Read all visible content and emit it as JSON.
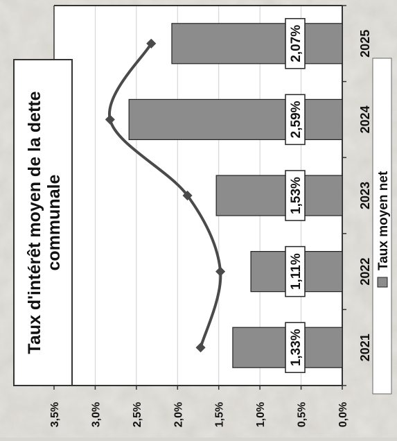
{
  "chart_data": {
    "type": "bar",
    "orientation": "rotated-90-clockwise",
    "title_lines": [
      "Taux d'intérêt moyen de la dette",
      "communale"
    ],
    "categories": [
      "2021",
      "2022",
      "2023",
      "2024",
      "2025"
    ],
    "series": [
      {
        "name": "Taux moyen net",
        "values": [
          1.33,
          1.11,
          1.53,
          2.59,
          2.07
        ]
      }
    ],
    "data_labels": [
      "1,33%",
      "1,11%",
      "1,53%",
      "2,59%",
      "2,07%"
    ],
    "trend_line": {
      "values": [
        1.72,
        1.48,
        1.88,
        2.82,
        2.32
      ]
    },
    "value_axis": {
      "range": [
        0,
        3.5
      ],
      "ticks": [
        0,
        0.5,
        1,
        1.5,
        2,
        2.5,
        3,
        3.5
      ],
      "tick_labels": [
        "0,0%",
        "0,5%",
        "1,0%",
        "1,5%",
        "2,0%",
        "2,5%",
        "3,0%",
        "3,5%"
      ]
    },
    "grid": true,
    "legend_position": "right",
    "colors": {
      "bar": "#8c8c8c",
      "line": "#4a4a4a",
      "plot_bg": "#ffffff",
      "border": "#333333"
    }
  }
}
